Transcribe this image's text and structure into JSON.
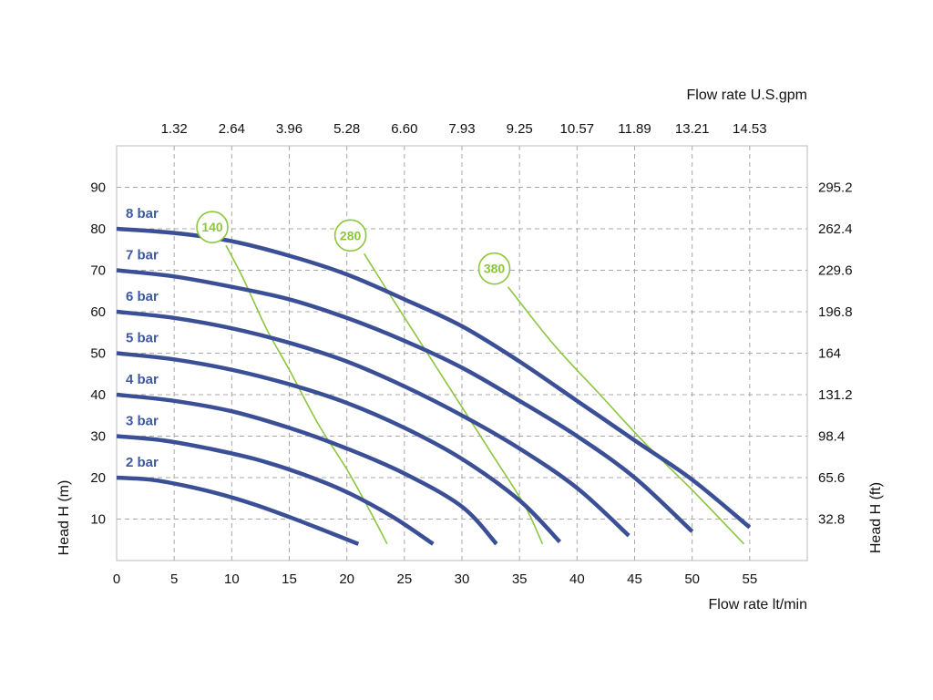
{
  "chart_data": {
    "type": "line",
    "title": "",
    "xlabel": "Flow rate  lt/min",
    "ylabel": "Head H (m)",
    "x2label": "Flow rate U.S.gpm",
    "y2label": "Head H (ft)",
    "xlim": [
      0,
      60
    ],
    "ylim": [
      0,
      100
    ],
    "grid": true,
    "x_ticks": [
      "0",
      "5",
      "10",
      "15",
      "20",
      "25",
      "30",
      "35",
      "40",
      "45",
      "50",
      "55"
    ],
    "x_tick_values": [
      0,
      5,
      10,
      15,
      20,
      25,
      30,
      35,
      40,
      45,
      50,
      55
    ],
    "y_ticks": [
      "10",
      "20",
      "30",
      "40",
      "50",
      "60",
      "70",
      "80",
      "90"
    ],
    "y_tick_values": [
      10,
      20,
      30,
      40,
      50,
      60,
      70,
      80,
      90
    ],
    "x2_ticks": [
      "1.32",
      "2.64",
      "3.96",
      "5.28",
      "6.60",
      "7.93",
      "9.25",
      "10.57",
      "11.89",
      "13.21",
      "14.53"
    ],
    "y2_ticks": [
      "32.8",
      "65.6",
      "98.4",
      "131.2",
      "164",
      "196.8",
      "229.6",
      "262.4",
      "295.2"
    ],
    "series_color": "#3a4f96",
    "iso_color": "#8cc63f",
    "series": [
      {
        "name": "2 bar",
        "x": [
          0,
          3,
          6,
          9,
          12,
          15,
          18,
          21
        ],
        "y": [
          20,
          19.5,
          18,
          16,
          13.5,
          10.5,
          7.3,
          4
        ]
      },
      {
        "name": "3 bar",
        "x": [
          0,
          4,
          8,
          12,
          16,
          20,
          24,
          27.5
        ],
        "y": [
          30,
          29,
          27,
          24.5,
          21,
          16.5,
          10.5,
          4
        ]
      },
      {
        "name": "4 bar",
        "x": [
          0,
          5,
          10,
          15,
          20,
          25,
          30,
          33
        ],
        "y": [
          40,
          38.5,
          36,
          32,
          27,
          21,
          13,
          4
        ]
      },
      {
        "name": "5 bar",
        "x": [
          0,
          5,
          10,
          15,
          20,
          25,
          30,
          35,
          38.5
        ],
        "y": [
          50,
          48.5,
          46,
          42.5,
          38,
          32,
          24.5,
          14.5,
          4.5
        ]
      },
      {
        "name": "6 bar",
        "x": [
          0,
          5,
          10,
          15,
          20,
          25,
          30,
          35,
          40,
          44.5
        ],
        "y": [
          60,
          58.5,
          56,
          52.5,
          48,
          42,
          35,
          27,
          17.5,
          6
        ]
      },
      {
        "name": "7 bar",
        "x": [
          0,
          5,
          10,
          15,
          20,
          25,
          30,
          35,
          40,
          45,
          50
        ],
        "y": [
          70,
          68.5,
          66,
          63,
          58.5,
          53,
          46.5,
          38.5,
          30,
          20,
          7
        ]
      },
      {
        "name": "8 bar",
        "x": [
          0,
          5,
          10,
          15,
          20,
          25,
          30,
          35,
          40,
          45,
          50,
          55
        ],
        "y": [
          80,
          79,
          77,
          73.5,
          69,
          63,
          56.5,
          48,
          38.5,
          29,
          19.5,
          8
        ]
      }
    ],
    "iso_lines": [
      {
        "name": "140",
        "x": [
          9.5,
          11,
          13,
          15,
          17.5,
          20,
          22,
          23.5
        ],
        "y": [
          76,
          68,
          56,
          46,
          33,
          22,
          12,
          4
        ]
      },
      {
        "name": "280",
        "x": [
          21.5,
          24,
          27,
          30,
          33,
          35.5,
          37
        ],
        "y": [
          74,
          63,
          50,
          37,
          24,
          13,
          4
        ]
      },
      {
        "name": "380",
        "x": [
          34,
          38,
          42,
          46,
          50,
          54.5
        ],
        "y": [
          66,
          52,
          40,
          28,
          17,
          4
        ]
      }
    ]
  }
}
